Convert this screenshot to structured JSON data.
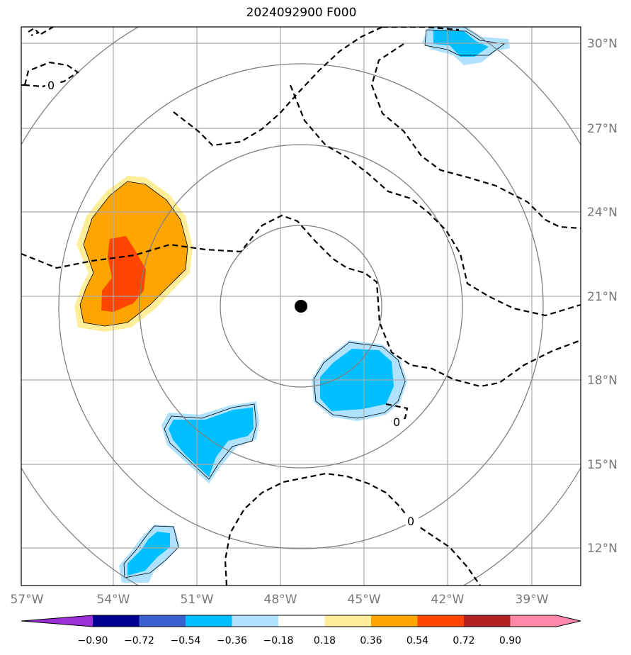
{
  "title": "2024092900 F000",
  "map": {
    "lon_range": [
      -57,
      -37
    ],
    "lat_range": [
      10.5,
      30.6
    ],
    "center": {
      "lon": -47.3,
      "lat": 20.6
    },
    "lon_ticks": [
      {
        "value": -57,
        "label": "57°W"
      },
      {
        "value": -54,
        "label": "54°W"
      },
      {
        "value": -51,
        "label": "51°W"
      },
      {
        "value": -48,
        "label": "48°W"
      },
      {
        "value": -45,
        "label": "45°W"
      },
      {
        "value": -42,
        "label": "42°W"
      },
      {
        "value": -39,
        "label": "39°W"
      }
    ],
    "lat_ticks": [
      {
        "value": 30,
        "label": "30°N"
      },
      {
        "value": 27,
        "label": "27°N"
      },
      {
        "value": 24,
        "label": "24°N"
      },
      {
        "value": 21,
        "label": "21°N"
      },
      {
        "value": 18,
        "label": "18°N"
      },
      {
        "value": 15,
        "label": "15°N"
      },
      {
        "value": 12,
        "label": "12°N"
      }
    ],
    "contour_labels": [
      "0",
      "0",
      "0"
    ],
    "colors": {
      "grid": "#aaaaaa",
      "rings": "#808080",
      "center_marker": "#000000"
    }
  },
  "colorbar": {
    "colors": [
      "#9b30d9",
      "#000090",
      "#3a5fd0",
      "#00bfff",
      "#b0e2ff",
      "#ffffff",
      "#ffee99",
      "#ffa500",
      "#ff4500",
      "#b22222",
      "#ff88aa"
    ],
    "labels": [
      "−0.90",
      "−0.72",
      "−0.54",
      "−0.36",
      "−0.18",
      "0.18",
      "0.36",
      "0.54",
      "0.72",
      "0.90"
    ]
  }
}
